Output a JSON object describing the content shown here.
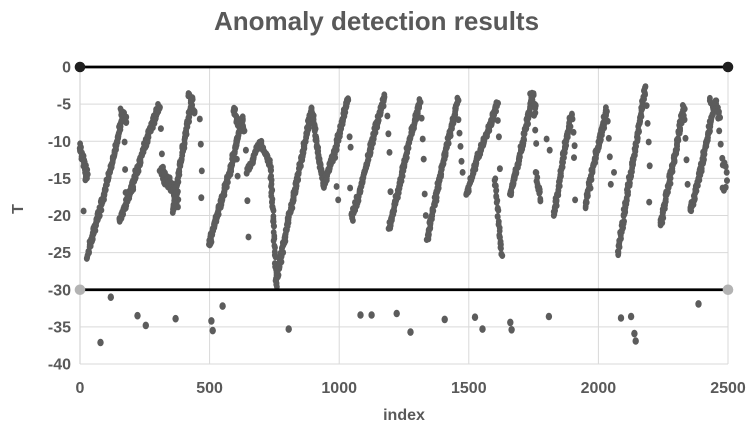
{
  "chart_data": {
    "type": "scatter",
    "title": "Anomaly detection results",
    "xlabel": "index",
    "ylabel": "T",
    "xlim": [
      0,
      2500
    ],
    "ylim": [
      -40,
      0
    ],
    "x_ticks": [
      0,
      500,
      1000,
      1500,
      2000,
      2500
    ],
    "y_ticks": [
      0,
      -5,
      -10,
      -15,
      -20,
      -25,
      -30,
      -35,
      -40
    ],
    "grid": true,
    "legend": "none",
    "colors": {
      "point": "#5c5c5c",
      "anomaly_point": "#5c5c5c",
      "gridline": "#d9d9d9",
      "axis_line": "#cccccc",
      "text": "#595959",
      "threshold_line": "#000000",
      "upper_marker": "#1f1f1f",
      "lower_marker": "#b3b3b3",
      "background": "#ffffff"
    },
    "thresholds": [
      {
        "name": "upper-limit",
        "y": 0,
        "x0": 0,
        "x1": 2500,
        "marker": "upper_marker"
      },
      {
        "name": "lower-limit",
        "y": -30,
        "x0": 0,
        "x1": 2500,
        "marker": "lower_marker"
      }
    ],
    "series": [
      {
        "name": "T-values",
        "kind": "dense_segments",
        "comment": "each segment = [index0, T0, index1, T1, n_points, x_jitter, y_jitter]; sawtooth ramps read off the chart",
        "segments": [
          [
            0,
            -10.8,
            30,
            -14.8,
            40,
            7,
            0.9
          ],
          [
            28,
            -25.8,
            170,
            -6.3,
            150,
            5,
            0.55
          ],
          [
            158,
            -6.1,
            180,
            -7.6,
            18,
            5,
            0.5
          ],
          [
            152,
            -20.8,
            308,
            -5.0,
            160,
            5,
            0.55
          ],
          [
            312,
            -13.9,
            378,
            -17.9,
            70,
            9,
            1.1
          ],
          [
            358,
            -19.4,
            432,
            -3.9,
            95,
            5,
            0.55
          ],
          [
            418,
            -3.6,
            442,
            -6.4,
            20,
            5,
            0.5
          ],
          [
            498,
            -24.2,
            630,
            -7.0,
            140,
            5,
            0.6
          ],
          [
            592,
            -6.0,
            634,
            -8.8,
            30,
            6,
            0.6
          ],
          [
            645,
            -13.9,
            697,
            -10.2,
            45,
            5,
            0.5
          ],
          [
            697,
            -10.2,
            738,
            -13.6,
            35,
            5,
            0.5
          ],
          [
            736,
            -14.0,
            758,
            -29.0,
            40,
            4,
            0.5
          ],
          [
            756,
            -29.0,
            893,
            -5.6,
            170,
            5,
            0.55
          ],
          [
            893,
            -5.8,
            941,
            -16.3,
            60,
            4,
            0.5
          ],
          [
            941,
            -16.3,
            1035,
            -4.5,
            95,
            5,
            0.55
          ],
          [
            1048,
            -20.6,
            1176,
            -3.9,
            140,
            5,
            0.55
          ],
          [
            1192,
            -21.6,
            1312,
            -4.4,
            130,
            5,
            0.55
          ],
          [
            1340,
            -22.8,
            1458,
            -4.0,
            130,
            5,
            0.55
          ],
          [
            1492,
            -17.0,
            1610,
            -4.7,
            120,
            5,
            0.55
          ],
          [
            1600,
            -15.0,
            1628,
            -25.6,
            32,
            4,
            0.5
          ],
          [
            1660,
            -17.5,
            1748,
            -3.8,
            100,
            5,
            0.55
          ],
          [
            1738,
            -3.7,
            1760,
            -5.9,
            18,
            5,
            0.5
          ],
          [
            1760,
            -14.6,
            1778,
            -17.9,
            14,
            4,
            0.5
          ],
          [
            1828,
            -19.8,
            1896,
            -5.9,
            80,
            5,
            0.55
          ],
          [
            1950,
            -18.6,
            2032,
            -5.4,
            95,
            5,
            0.55
          ],
          [
            2076,
            -25.0,
            2180,
            -2.8,
            125,
            5,
            0.55
          ],
          [
            2240,
            -21.4,
            2330,
            -5.5,
            105,
            5,
            0.55
          ],
          [
            2355,
            -19.8,
            2452,
            -4.7,
            110,
            5,
            0.55
          ],
          [
            2432,
            -4.4,
            2468,
            -6.4,
            22,
            5,
            0.5
          ]
        ]
      },
      {
        "name": "T-values-sparse",
        "kind": "points",
        "comment": "isolated descent dots between ramps, [index, T]",
        "points": [
          [
            14,
            -19.4
          ],
          [
            21,
            -15.2
          ],
          [
            172,
            -10.1
          ],
          [
            174,
            -13.8
          ],
          [
            176,
            -16.9
          ],
          [
            312,
            -8.3
          ],
          [
            316,
            -11.7
          ],
          [
            320,
            -13.5
          ],
          [
            462,
            -7.0
          ],
          [
            466,
            -10.4
          ],
          [
            470,
            -14.0
          ],
          [
            468,
            -17.6
          ],
          [
            558,
            -15.9
          ],
          [
            605,
            -12.4
          ],
          [
            608,
            -14.7
          ],
          [
            640,
            -11.2
          ],
          [
            643,
            -14.3
          ],
          [
            646,
            -18.0
          ],
          [
            650,
            -22.9
          ],
          [
            742,
            -18.8
          ],
          [
            984,
            -12.2
          ],
          [
            990,
            -16.1
          ],
          [
            996,
            -17.9
          ],
          [
            1040,
            -9.4
          ],
          [
            1044,
            -10.8
          ],
          [
            1042,
            -16.3
          ],
          [
            1186,
            -6.6
          ],
          [
            1190,
            -9.0
          ],
          [
            1194,
            -11.5
          ],
          [
            1198,
            -16.8
          ],
          [
            1318,
            -6.9
          ],
          [
            1322,
            -9.7
          ],
          [
            1326,
            -12.4
          ],
          [
            1330,
            -17.1
          ],
          [
            1334,
            -20.0
          ],
          [
            1460,
            -7.1
          ],
          [
            1464,
            -8.9
          ],
          [
            1468,
            -10.7
          ],
          [
            1472,
            -12.7
          ],
          [
            1476,
            -14.2
          ],
          [
            1612,
            -7.2
          ],
          [
            1616,
            -9.4
          ],
          [
            1620,
            -13.7
          ],
          [
            1752,
            -6.5
          ],
          [
            1756,
            -8.5
          ],
          [
            1760,
            -10.3
          ],
          [
            1758,
            -14.2
          ],
          [
            1800,
            -9.7
          ],
          [
            1812,
            -11.2
          ],
          [
            1900,
            -7.0
          ],
          [
            1904,
            -8.8
          ],
          [
            1908,
            -10.6
          ],
          [
            1906,
            -12.2
          ],
          [
            1910,
            -17.9
          ],
          [
            2036,
            -7.3
          ],
          [
            2040,
            -9.6
          ],
          [
            2044,
            -12.1
          ],
          [
            2048,
            -15.8
          ],
          [
            2060,
            -14.2
          ],
          [
            2186,
            -5.2
          ],
          [
            2190,
            -7.6
          ],
          [
            2194,
            -10.1
          ],
          [
            2198,
            -13.3
          ],
          [
            2196,
            -18.2
          ],
          [
            2332,
            -7.1
          ],
          [
            2336,
            -9.6
          ],
          [
            2340,
            -12.5
          ],
          [
            2344,
            -15.8
          ],
          [
            2462,
            -6.9
          ],
          [
            2466,
            -8.6
          ],
          [
            2472,
            -10.4
          ],
          [
            2478,
            -12.3
          ],
          [
            2480,
            -13.2
          ],
          [
            2486,
            -12.9
          ],
          [
            2491,
            -13.4
          ],
          [
            2495,
            -14.2
          ],
          [
            2496,
            -15.3
          ],
          [
            2491,
            -16.2
          ],
          [
            2484,
            -16.6
          ],
          [
            2479,
            -16.3
          ]
        ]
      },
      {
        "name": "anomalies",
        "kind": "points",
        "comment": "detected anomalies below lower threshold, [index, T]",
        "points": [
          [
            79,
            -37.1
          ],
          [
            119,
            -31.0
          ],
          [
            222,
            -33.5
          ],
          [
            254,
            -34.8
          ],
          [
            369,
            -33.9
          ],
          [
            507,
            -34.2
          ],
          [
            512,
            -35.5
          ],
          [
            550,
            -32.2
          ],
          [
            805,
            -35.3
          ],
          [
            1082,
            -33.4
          ],
          [
            1125,
            -33.4
          ],
          [
            1222,
            -33.2
          ],
          [
            1275,
            -35.7
          ],
          [
            1407,
            -34.0
          ],
          [
            1524,
            -33.7
          ],
          [
            1553,
            -35.3
          ],
          [
            1660,
            -34.4
          ],
          [
            1665,
            -35.4
          ],
          [
            1809,
            -33.6
          ],
          [
            2087,
            -33.8
          ],
          [
            2126,
            -33.6
          ],
          [
            2139,
            -35.9
          ],
          [
            2144,
            -36.9
          ],
          [
            2386,
            -31.9
          ]
        ]
      }
    ]
  }
}
